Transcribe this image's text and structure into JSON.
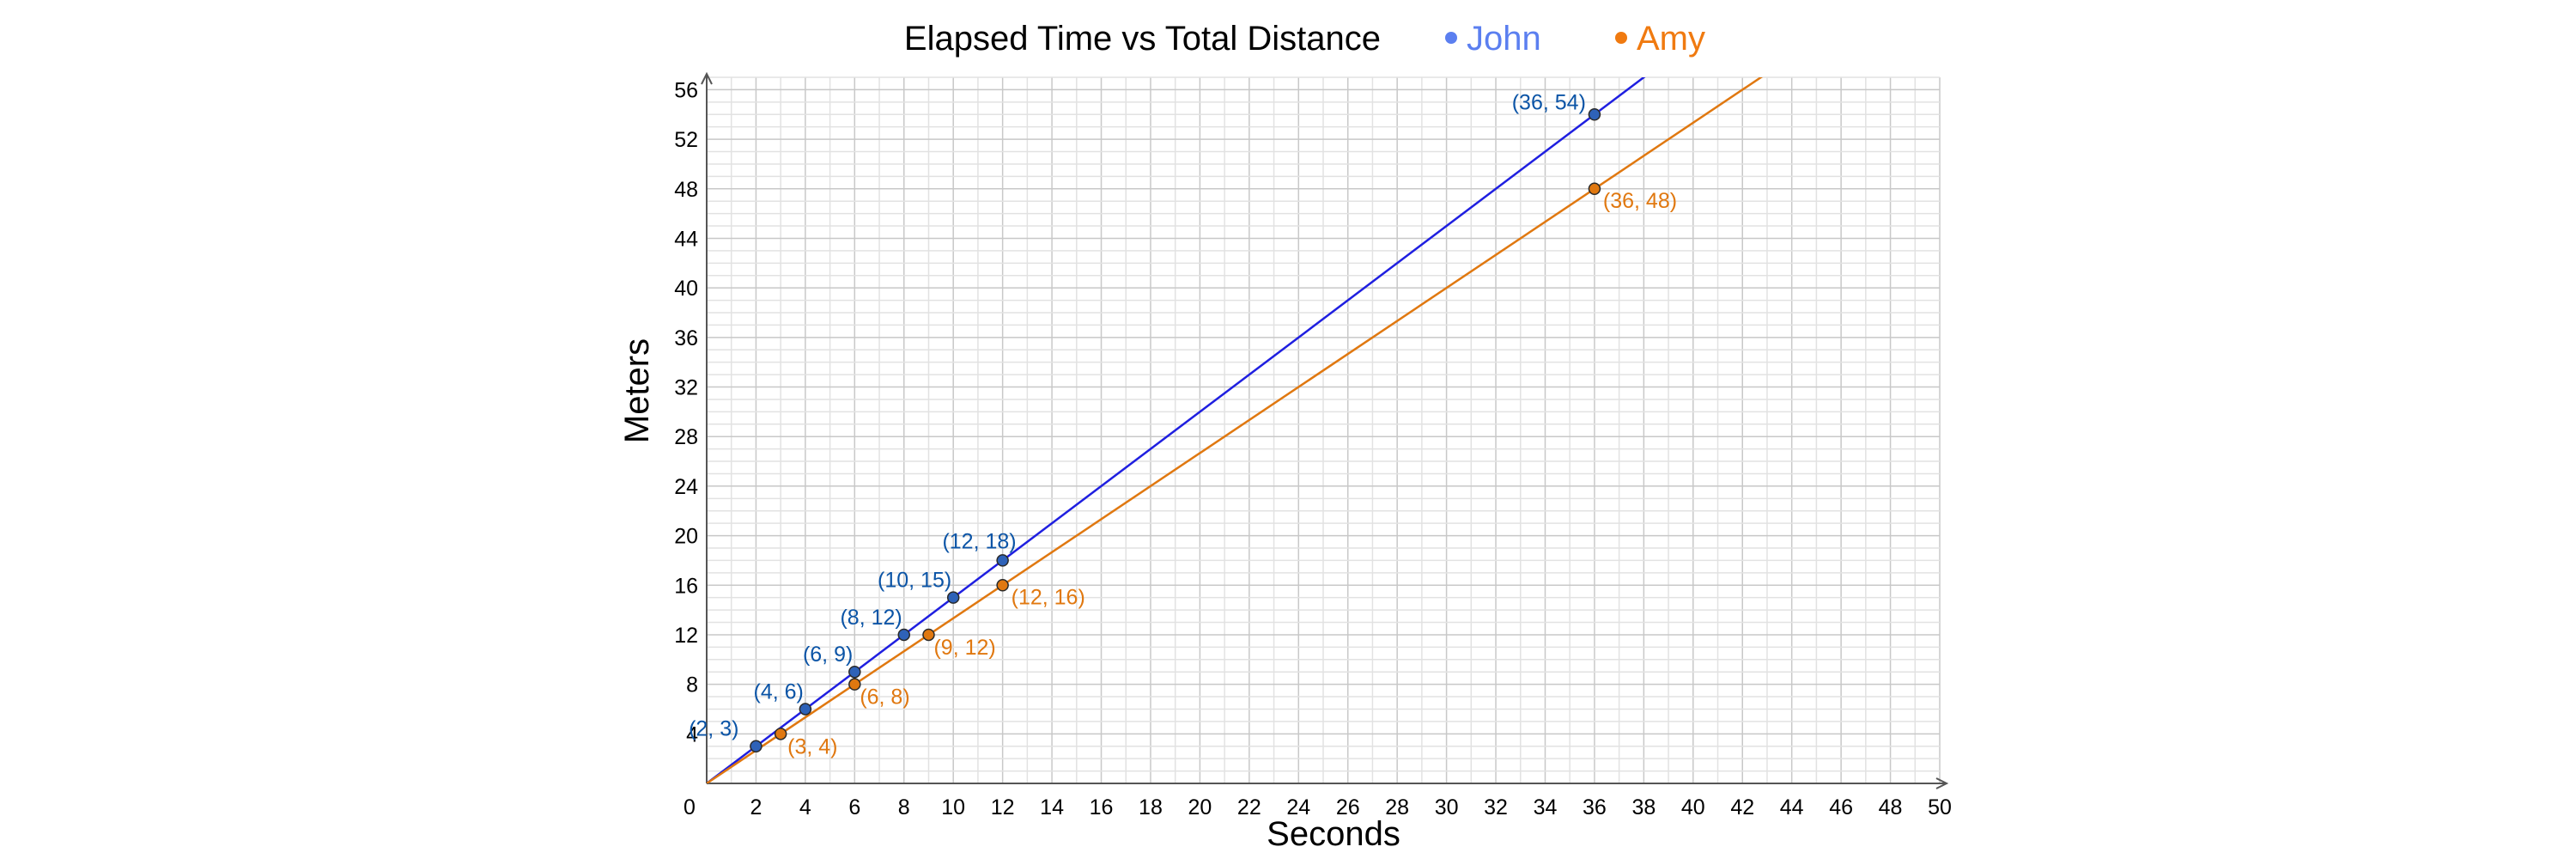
{
  "chart_data": {
    "type": "line",
    "title": "Elapsed Time vs Total Distance",
    "xlabel": "Seconds",
    "ylabel": "Meters",
    "xlim": [
      0,
      50
    ],
    "ylim": [
      0,
      57
    ],
    "x_ticks": [
      "0",
      "2",
      "4",
      "6",
      "8",
      "10",
      "12",
      "14",
      "16",
      "18",
      "20",
      "22",
      "24",
      "26",
      "28",
      "30",
      "32",
      "34",
      "36",
      "38",
      "40",
      "42",
      "44",
      "46",
      "48",
      "50"
    ],
    "y_ticks": [
      "4",
      "8",
      "12",
      "16",
      "20",
      "24",
      "28",
      "32",
      "36",
      "40",
      "44",
      "48",
      "52",
      "56"
    ],
    "grid": true,
    "legend_position": "top",
    "series": [
      {
        "name": "John",
        "color": "#1f1fe0",
        "point_color": "#2e62b8",
        "label_color": "#0b54a6",
        "legend_color": "#5b7ff0",
        "slope": 1.5,
        "points": [
          [
            2,
            3
          ],
          [
            4,
            6
          ],
          [
            6,
            9
          ],
          [
            8,
            12
          ],
          [
            10,
            15
          ],
          [
            12,
            18
          ],
          [
            36,
            54
          ]
        ],
        "labels": [
          "(2, 3)",
          "(4, 6)",
          "(6, 9)",
          "(8, 12)",
          "(10, 15)",
          "(12, 18)",
          "(36, 54)"
        ]
      },
      {
        "name": "Amy",
        "color": "#e07810",
        "point_color": "#e07810",
        "label_color": "#e07810",
        "legend_color": "#f07a10",
        "slope": 1.3333,
        "points": [
          [
            3,
            4
          ],
          [
            6,
            8
          ],
          [
            9,
            12
          ],
          [
            12,
            16
          ],
          [
            36,
            48
          ]
        ],
        "labels": [
          "(3, 4)",
          "(6, 8)",
          "(9, 12)",
          "(12, 16)",
          "(36, 48)"
        ]
      }
    ]
  }
}
